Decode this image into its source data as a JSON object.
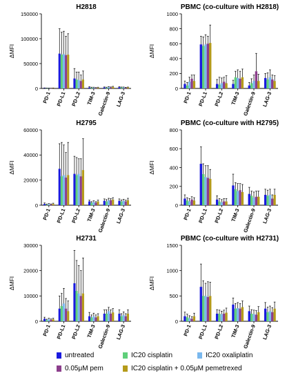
{
  "colors": {
    "untreated": "#1a1adf",
    "ic20_cisplatin": "#5fcf7a",
    "ic20_oxaliplatin": "#7ab8ee",
    "pem": "#8c3e8c",
    "combo": "#b59b1a"
  },
  "legend": [
    {
      "key": "untreated",
      "label": "untreated",
      "color": "#1a1adf"
    },
    {
      "key": "ic20_cisplatin",
      "label": "IC20 cisplatin",
      "color": "#5fcf7a"
    },
    {
      "key": "ic20_oxaliplatin",
      "label": "IC20 oxaliplatin",
      "color": "#7ab8ee"
    },
    {
      "key": "pem",
      "label": "0.05μM pem",
      "color": "#8c3e8c"
    },
    {
      "key": "combo",
      "label": "IC20 cisplatin + 0.05μM pemetrexed",
      "color": "#b59b1a"
    }
  ],
  "chart_data": [
    {
      "type": "bar",
      "title": "H2818",
      "ylabel": "ΔMFI",
      "ylim": [
        0,
        150000
      ],
      "yticks": [
        "0",
        "50000",
        "100000",
        "150000"
      ],
      "categories": [
        "PD-1",
        "PD-L1",
        "PD-L2",
        "TIM-3",
        "Galectin-9",
        "LAG-3"
      ],
      "series": [
        {
          "name": "untreated",
          "values": [
            800,
            70000,
            20000,
            2000,
            2000,
            2500
          ],
          "errors": [
            300,
            50000,
            20000,
            1500,
            1000,
            1000
          ]
        },
        {
          "name": "IC20 cisplatin",
          "values": [
            500,
            68000,
            18000,
            1500,
            1500,
            2000
          ],
          "errors": [
            300,
            45000,
            15000,
            1000,
            1000,
            800
          ]
        },
        {
          "name": "IC20 oxaliplatin",
          "values": [
            600,
            69000,
            17000,
            1500,
            2500,
            2000
          ],
          "errors": [
            300,
            46000,
            16000,
            1000,
            1200,
            800
          ]
        },
        {
          "name": "0.05μM pem",
          "values": [
            300,
            67000,
            15000,
            1000,
            2000,
            1500
          ],
          "errors": [
            200,
            38000,
            12000,
            800,
            1000,
            700
          ]
        },
        {
          "name": "IC20 cisplatin + 0.05μM pemetrexed",
          "values": [
            700,
            68000,
            18000,
            1500,
            3000,
            2000
          ],
          "errors": [
            300,
            42000,
            17000,
            1000,
            1200,
            800
          ]
        }
      ]
    },
    {
      "type": "bar",
      "title": "PBMC (co-culture with H2818)",
      "ylabel": "ΔMFI",
      "ylim": [
        0,
        1000
      ],
      "yticks": [
        "0",
        "200",
        "400",
        "600",
        "800",
        "1000"
      ],
      "categories": [
        "PD-1",
        "PD-L1",
        "PD-L2",
        "TIM-3",
        "Galectin-9",
        "LAG-3"
      ],
      "series": [
        {
          "name": "untreated",
          "values": [
            60,
            590,
            60,
            60,
            40,
            140
          ],
          "errors": [
            40,
            110,
            60,
            50,
            40,
            60
          ]
        },
        {
          "name": "IC20 cisplatin",
          "values": [
            40,
            570,
            50,
            150,
            70,
            120
          ],
          "errors": [
            40,
            120,
            100,
            80,
            60,
            90
          ]
        },
        {
          "name": "IC20 oxaliplatin",
          "values": [
            90,
            590,
            70,
            140,
            100,
            150
          ],
          "errors": [
            60,
            130,
            70,
            110,
            80,
            100
          ]
        },
        {
          "name": "0.05μM pem",
          "values": [
            130,
            600,
            90,
            130,
            230,
            120
          ],
          "errors": [
            50,
            100,
            60,
            100,
            240,
            60
          ]
        },
        {
          "name": "IC20 cisplatin + 0.05μM pemetrexed",
          "values": [
            100,
            610,
            70,
            150,
            100,
            100
          ],
          "errors": [
            80,
            240,
            100,
            110,
            90,
            70
          ]
        }
      ]
    },
    {
      "type": "bar",
      "title": "H2795",
      "ylabel": "ΔMFI",
      "ylim": [
        0,
        60000
      ],
      "yticks": [
        "0",
        "20000",
        "40000",
        "60000"
      ],
      "categories": [
        "PD-1",
        "PD-L1",
        "PD-L2",
        "TIM-3",
        "Galectin-9",
        "LAG-3"
      ],
      "series": [
        {
          "name": "untreated",
          "values": [
            1000,
            29000,
            25000,
            3000,
            3500,
            3500
          ],
          "errors": [
            800,
            20000,
            14000,
            1000,
            1500,
            1500
          ]
        },
        {
          "name": "IC20 cisplatin",
          "values": [
            500,
            23000,
            24000,
            2000,
            3000,
            3000
          ],
          "errors": [
            400,
            27000,
            14000,
            800,
            1500,
            1200
          ]
        },
        {
          "name": "IC20 oxaliplatin",
          "values": [
            800,
            24000,
            25000,
            2500,
            4000,
            3500
          ],
          "errors": [
            500,
            24000,
            12000,
            1000,
            1500,
            1200
          ]
        },
        {
          "name": "0.05μM pem",
          "values": [
            600,
            22000,
            23000,
            2000,
            4000,
            3000
          ],
          "errors": [
            400,
            20000,
            14000,
            800,
            1200,
            1000
          ]
        },
        {
          "name": "IC20 cisplatin + 0.05μM pemetrexed",
          "values": [
            1000,
            24000,
            28000,
            3000,
            4500,
            4000
          ],
          "errors": [
            600,
            26000,
            25000,
            1000,
            1500,
            1500
          ]
        }
      ]
    },
    {
      "type": "bar",
      "title": "PBMC (co-culture with H2795)",
      "ylabel": "ΔMFI",
      "ylim": [
        0,
        800
      ],
      "yticks": [
        "0",
        "200",
        "400",
        "600",
        "800"
      ],
      "categories": [
        "PD-1",
        "PD-L1",
        "PD-L2",
        "TIM-3",
        "Galectin-9",
        "LAG-3"
      ],
      "series": [
        {
          "name": "untreated",
          "values": [
            70,
            440,
            60,
            210,
            120,
            110
          ],
          "errors": [
            40,
            180,
            40,
            120,
            70,
            60
          ]
        },
        {
          "name": "IC20 cisplatin",
          "values": [
            50,
            330,
            40,
            170,
            100,
            100
          ],
          "errors": [
            30,
            110,
            30,
            70,
            50,
            60
          ]
        },
        {
          "name": "IC20 oxaliplatin",
          "values": [
            40,
            300,
            30,
            150,
            80,
            110
          ],
          "errors": [
            30,
            120,
            30,
            80,
            60,
            60
          ]
        },
        {
          "name": "0.05μM pem",
          "values": [
            60,
            290,
            40,
            160,
            90,
            70
          ],
          "errors": [
            30,
            130,
            30,
            70,
            60,
            40
          ]
        },
        {
          "name": "IC20 cisplatin + 0.05μM pemetrexed",
          "values": [
            50,
            280,
            40,
            140,
            90,
            110
          ],
          "errors": [
            30,
            100,
            30,
            80,
            60,
            60
          ]
        }
      ]
    },
    {
      "type": "bar",
      "title": "H2731",
      "ylabel": "ΔMFI",
      "ylim": [
        0,
        30000
      ],
      "yticks": [
        "0",
        "10000",
        "20000",
        "30000"
      ],
      "categories": [
        "PD-1",
        "PD-L1",
        "PD-L2",
        "TIM-3",
        "Galectin-9",
        "LAG-3"
      ],
      "series": [
        {
          "name": "untreated",
          "values": [
            1000,
            5000,
            15000,
            2000,
            3000,
            3000
          ],
          "errors": [
            600,
            5000,
            13000,
            1500,
            1500,
            1500
          ]
        },
        {
          "name": "IC20 cisplatin",
          "values": [
            500,
            6000,
            12000,
            1500,
            3000,
            2000
          ],
          "errors": [
            300,
            5000,
            12000,
            1000,
            1500,
            1000
          ]
        },
        {
          "name": "IC20 oxaliplatin",
          "values": [
            800,
            7000,
            11000,
            2000,
            4000,
            2500
          ],
          "errors": [
            400,
            6000,
            11000,
            1200,
            1500,
            1200
          ]
        },
        {
          "name": "0.05μM pem",
          "values": [
            600,
            5000,
            10000,
            1500,
            3000,
            2000
          ],
          "errors": [
            300,
            4000,
            10000,
            1000,
            1500,
            1000
          ]
        },
        {
          "name": "IC20 cisplatin + 0.05μM pemetrexed",
          "values": [
            800,
            4000,
            11000,
            2000,
            3500,
            3000
          ],
          "errors": [
            400,
            4000,
            14000,
            1000,
            1500,
            1500
          ]
        }
      ]
    },
    {
      "type": "bar",
      "title": "PBMC (co-culture with H2731)",
      "ylabel": "ΔMFI",
      "ylim": [
        0,
        1500
      ],
      "yticks": [
        "0",
        "500",
        "1000",
        "1500"
      ],
      "categories": [
        "PD-1",
        "PD-L1",
        "PD-L2",
        "TIM-3",
        "Galectin-9",
        "LAG-3"
      ],
      "series": [
        {
          "name": "untreated",
          "values": [
            100,
            680,
            150,
            330,
            200,
            250
          ],
          "errors": [
            80,
            450,
            80,
            130,
            100,
            120
          ]
        },
        {
          "name": "IC20 cisplatin",
          "values": [
            80,
            500,
            150,
            250,
            150,
            180
          ],
          "errors": [
            60,
            300,
            70,
            100,
            80,
            100
          ]
        },
        {
          "name": "IC20 oxaliplatin",
          "values": [
            60,
            500,
            140,
            260,
            140,
            200
          ],
          "errors": [
            50,
            250,
            60,
            110,
            80,
            100
          ]
        },
        {
          "name": "0.05μM pem",
          "values": [
            50,
            480,
            150,
            250,
            130,
            180
          ],
          "errors": [
            40,
            300,
            70,
            100,
            80,
            90
          ]
        },
        {
          "name": "IC20 cisplatin + 0.05μM pemetrexed",
          "values": [
            100,
            500,
            170,
            280,
            180,
            250
          ],
          "errors": [
            60,
            270,
            90,
            120,
            110,
            130
          ]
        }
      ]
    }
  ]
}
